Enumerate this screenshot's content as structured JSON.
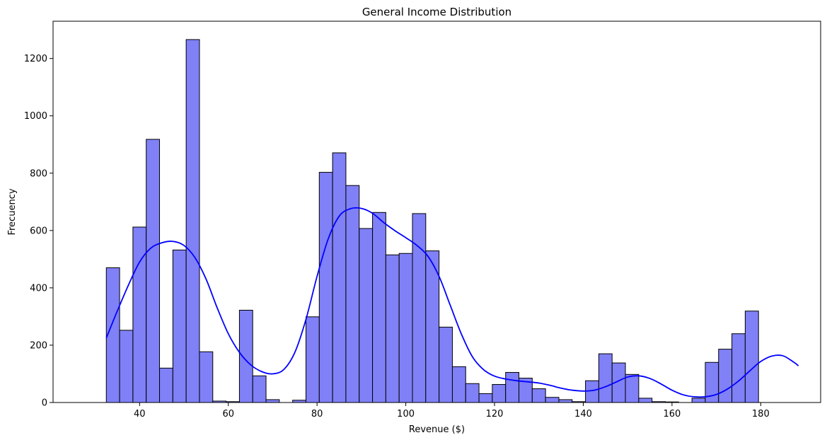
{
  "chart_data": {
    "type": "bar",
    "title": "General Income Distribution",
    "xlabel": "Revenue ($)",
    "ylabel": "Frecuency",
    "xlim": [
      20.5,
      193.5
    ],
    "ylim": [
      0,
      1330
    ],
    "xticks": [
      40,
      60,
      80,
      100,
      120,
      140,
      160,
      180
    ],
    "yticks": [
      0,
      200,
      400,
      600,
      800,
      1000,
      1200
    ],
    "bin_start": 32.5,
    "bin_width": 3.0,
    "grid": false,
    "series": [
      {
        "values": [
          470,
          252,
          612,
          918,
          120,
          532,
          1266,
          177,
          5,
          3,
          322,
          93,
          10,
          0,
          8,
          299,
          803,
          871,
          757,
          607,
          663,
          515,
          520,
          659,
          529,
          263,
          125,
          66,
          31,
          63,
          105,
          85,
          48,
          18,
          10,
          3,
          76,
          170,
          138,
          98,
          15,
          3,
          2,
          0,
          15,
          140,
          186,
          240,
          319
        ],
        "color": "#8080f7"
      }
    ],
    "kde": {
      "x": [
        32.5,
        35,
        37.5,
        40,
        42.5,
        45,
        47.5,
        50,
        52.5,
        55,
        57.5,
        60,
        62.5,
        65,
        67.5,
        70,
        72.5,
        75,
        77.5,
        80,
        82.5,
        85,
        87.5,
        90,
        92.5,
        95,
        97.5,
        100,
        102.5,
        105,
        107.5,
        110,
        112.5,
        115,
        117.5,
        120,
        122.5,
        125,
        127.5,
        130,
        132.5,
        135,
        137.5,
        140,
        142.5,
        145,
        147.5,
        150,
        152.5,
        155,
        157.5,
        160,
        162.5,
        165,
        167.5,
        170,
        172.5,
        175,
        177.5,
        180,
        182.5,
        185,
        187.5,
        188.5
      ],
      "y": [
        225,
        320,
        410,
        490,
        538,
        557,
        562,
        548,
        505,
        430,
        330,
        240,
        175,
        132,
        108,
        100,
        115,
        175,
        290,
        440,
        570,
        650,
        676,
        677,
        660,
        628,
        600,
        575,
        548,
        510,
        440,
        340,
        240,
        160,
        115,
        92,
        82,
        76,
        72,
        68,
        60,
        50,
        43,
        40,
        43,
        55,
        72,
        89,
        93,
        84,
        65,
        43,
        27,
        20,
        20,
        28,
        47,
        75,
        110,
        143,
        162,
        163,
        140,
        128
      ],
      "color": "#0000ff"
    }
  }
}
